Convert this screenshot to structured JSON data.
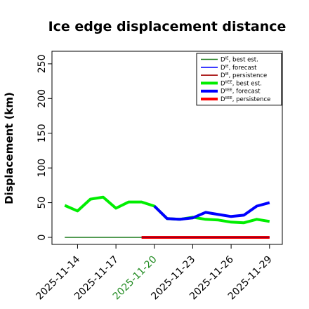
{
  "chart_data": {
    "type": "line",
    "title": "Ice edge displacement distance",
    "xlabel": "",
    "ylabel": "Displacement (km)",
    "ylim": [
      0,
      260
    ],
    "yticks": [
      0,
      50,
      100,
      150,
      200,
      250
    ],
    "xlim": [
      "2025-11-12",
      "2025-11-30"
    ],
    "xticks": [
      {
        "date": "2025-11-14",
        "label": "2025-11-14",
        "color": "#000000"
      },
      {
        "date": "2025-11-17",
        "label": "2025-11-17",
        "color": "#000000"
      },
      {
        "date": "2025-11-20",
        "label": "2025-11-20",
        "color": "#228B22"
      },
      {
        "date": "2025-11-23",
        "label": "2025-11-23",
        "color": "#000000"
      },
      {
        "date": "2025-11-26",
        "label": "2025-11-26",
        "color": "#000000"
      },
      {
        "date": "2025-11-29",
        "label": "2025-11-29",
        "color": "#000000"
      }
    ],
    "grid": false,
    "legend_position": "top-right",
    "series": [
      {
        "name": "D^IE, best est.",
        "label_main": "D",
        "label_sup": "IE",
        "label_rest": ", best est.",
        "color": "#1a7a1a",
        "width": 1.5,
        "x": [
          "2025-11-13",
          "2025-11-19"
        ],
        "y": [
          0,
          0
        ]
      },
      {
        "name": "D^IE, forecast",
        "label_main": "D",
        "label_sup": "IE",
        "label_rest": ", forecast",
        "color": "#0000ff",
        "width": 1.5,
        "x": [
          "2025-11-19",
          "2025-11-29"
        ],
        "y": [
          0,
          0
        ]
      },
      {
        "name": "D^IE, persistence",
        "label_main": "D",
        "label_sup": "IE",
        "label_rest": ", persistence",
        "color": "#a00000",
        "width": 1.5,
        "x": [
          "2025-11-19",
          "2025-11-29"
        ],
        "y": [
          0,
          0
        ]
      },
      {
        "name": "D^IIEE, best est.",
        "label_main": "D",
        "label_sup": "IIEE",
        "label_rest": ", best est.",
        "color": "#00ee00",
        "width": 4,
        "x": [
          "2025-11-13",
          "2025-11-14",
          "2025-11-15",
          "2025-11-16",
          "2025-11-17",
          "2025-11-18",
          "2025-11-19",
          "2025-11-20",
          "2025-11-21",
          "2025-11-22",
          "2025-11-23",
          "2025-11-24",
          "2025-11-25",
          "2025-11-26",
          "2025-11-27",
          "2025-11-28",
          "2025-11-29"
        ],
        "y": [
          46,
          38,
          55,
          58,
          42,
          51,
          51,
          45,
          27,
          26,
          29,
          26,
          25,
          22,
          21,
          26,
          23
        ]
      },
      {
        "name": "D^IIEE, forecast",
        "label_main": "D",
        "label_sup": "IIEE",
        "label_rest": ", forecast",
        "color": "#0000ff",
        "width": 4,
        "x": [
          "2025-11-20",
          "2025-11-21",
          "2025-11-22",
          "2025-11-23",
          "2025-11-24",
          "2025-11-25",
          "2025-11-26",
          "2025-11-27",
          "2025-11-28",
          "2025-11-29"
        ],
        "y": [
          45,
          27,
          26,
          28,
          36,
          33,
          30,
          32,
          45,
          50
        ]
      },
      {
        "name": "D^IIEE, persistence",
        "label_main": "D",
        "label_sup": "IIEE",
        "label_rest": ", persistence",
        "color": "#ff0000",
        "width": 4,
        "x": [
          "2025-11-19",
          "2025-11-29"
        ],
        "y": [
          0,
          0
        ]
      }
    ]
  }
}
